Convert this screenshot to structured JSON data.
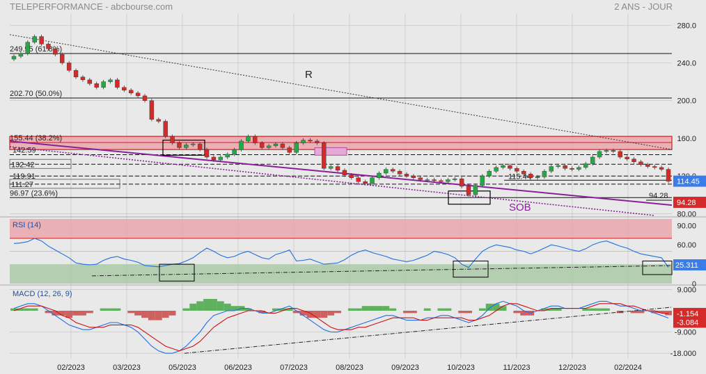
{
  "header": {
    "title": "TELEPERFORMANCE - abcbourse.com",
    "period": "2 ANS - JOUR"
  },
  "colors": {
    "background": "#e9e9e9",
    "grid": "#bdbdbd",
    "up_candle": "#27a745",
    "down_candle": "#d42a2a",
    "purple": "#8b1f9a",
    "rsi_line": "#1e6fe0",
    "macd_line": "#1e6fe0",
    "signal_line": "#cc1010",
    "hist_pos": "#5fb05f",
    "hist_neg": "#d06060",
    "price_tag_last": "#3b7de8",
    "price_tag_low": "#d42a2a"
  },
  "chart_data": [
    {
      "type": "candlestick",
      "panel": "price",
      "x_labels": [
        "02/2023",
        "03/2023",
        "05/2023",
        "06/2023",
        "07/2023",
        "08/2023",
        "09/2023",
        "10/2023",
        "11/2023",
        "12/2023",
        "02/2024"
      ],
      "y_ticks": [
        "280.0",
        "240.0",
        "200.0",
        "160.0",
        "120.0",
        "80.00"
      ],
      "ylim": [
        78,
        292
      ],
      "grid": true,
      "series_close": [
        [
          0,
          247
        ],
        [
          1,
          250
        ],
        [
          2,
          262
        ],
        [
          3,
          268
        ],
        [
          4,
          260
        ],
        [
          5,
          255
        ],
        [
          6,
          249
        ],
        [
          7,
          240
        ],
        [
          8,
          232
        ],
        [
          9,
          225
        ],
        [
          10,
          222
        ],
        [
          11,
          218
        ],
        [
          12,
          214
        ],
        [
          13,
          220
        ],
        [
          14,
          222
        ],
        [
          15,
          214
        ],
        [
          16,
          211
        ],
        [
          17,
          208
        ],
        [
          18,
          205
        ],
        [
          19,
          200
        ],
        [
          20,
          180
        ],
        [
          21,
          178
        ],
        [
          22,
          162
        ],
        [
          23,
          155
        ],
        [
          24,
          150
        ],
        [
          25,
          153
        ],
        [
          26,
          154
        ],
        [
          27,
          148
        ],
        [
          28,
          140
        ],
        [
          29,
          137
        ],
        [
          30,
          140
        ],
        [
          31,
          143
        ],
        [
          32,
          148
        ],
        [
          33,
          157
        ],
        [
          34,
          162
        ],
        [
          35,
          155
        ],
        [
          36,
          150
        ],
        [
          37,
          152
        ],
        [
          38,
          154
        ],
        [
          39,
          150
        ],
        [
          40,
          145
        ],
        [
          41,
          155
        ],
        [
          42,
          158
        ],
        [
          43,
          157
        ],
        [
          44,
          155
        ],
        [
          45,
          128
        ],
        [
          46,
          130
        ],
        [
          47,
          126
        ],
        [
          48,
          121
        ],
        [
          49,
          118
        ],
        [
          50,
          114
        ],
        [
          51,
          112
        ],
        [
          52,
          118
        ],
        [
          53,
          123
        ],
        [
          54,
          127
        ],
        [
          55,
          125
        ],
        [
          56,
          122
        ],
        [
          57,
          120
        ],
        [
          58,
          118
        ],
        [
          59,
          116
        ],
        [
          60,
          116
        ],
        [
          61,
          115
        ],
        [
          62,
          114
        ],
        [
          63,
          116
        ],
        [
          64,
          117
        ],
        [
          65,
          109
        ],
        [
          66,
          100
        ],
        [
          67,
          110
        ],
        [
          68,
          120
        ],
        [
          69,
          125
        ],
        [
          70,
          129
        ],
        [
          71,
          131
        ],
        [
          72,
          128
        ],
        [
          73,
          125
        ],
        [
          74,
          122
        ],
        [
          75,
          118
        ],
        [
          76,
          119
        ],
        [
          77,
          125
        ],
        [
          78,
          130
        ],
        [
          79,
          131
        ],
        [
          80,
          128
        ],
        [
          81,
          127
        ],
        [
          82,
          129
        ],
        [
          83,
          133
        ],
        [
          84,
          140
        ],
        [
          85,
          146
        ],
        [
          86,
          147
        ],
        [
          87,
          146
        ],
        [
          88,
          140
        ],
        [
          89,
          138
        ],
        [
          90,
          135
        ],
        [
          91,
          132
        ],
        [
          92,
          130
        ],
        [
          93,
          129
        ],
        [
          94,
          127
        ],
        [
          95,
          114.45
        ]
      ],
      "current_price": "114.45",
      "low_price_tag": "94.28",
      "fibonacci_levels": [
        {
          "label": "249.95  (61.8%)",
          "value": 249.95
        },
        {
          "label": "202.70  (50.0%)",
          "value": 202.7
        },
        {
          "label": "155.44  (38.2%)",
          "value": 155.44
        },
        {
          "label": "96.97  (23.6%)",
          "value": 96.97
        }
      ],
      "level_labels": [
        {
          "label": "142.59",
          "value": 142.59
        },
        {
          "label": "132.42",
          "value": 132.42
        },
        {
          "label": "119.91",
          "value": 119.91
        },
        {
          "label": "111.27",
          "value": 111.27
        },
        {
          "label": "115.44",
          "value": 115.44
        },
        {
          "label": "94.28",
          "value": 94.28
        }
      ],
      "annotations": [
        "R",
        "SOB"
      ]
    },
    {
      "type": "line",
      "panel": "rsi",
      "title": "RSI (14)",
      "y_ticks": [
        "90.00",
        "60.00",
        "30",
        "0"
      ],
      "ylim": [
        0,
        100
      ],
      "overbought": 70,
      "oversold": 30,
      "current_value": "25.311",
      "values": [
        62,
        63,
        65,
        70,
        66,
        58,
        52,
        46,
        40,
        32,
        30,
        29,
        30,
        36,
        40,
        42,
        38,
        36,
        33,
        28,
        27,
        26,
        28,
        30,
        31,
        35,
        40,
        48,
        55,
        50,
        44,
        40,
        42,
        47,
        50,
        45,
        40,
        38,
        45,
        48,
        52,
        35,
        36,
        38,
        34,
        30,
        31,
        32,
        37,
        44,
        49,
        52,
        48,
        45,
        42,
        38,
        36,
        34,
        36,
        40,
        44,
        50,
        48,
        45,
        40,
        30,
        25,
        38,
        50,
        56,
        60,
        58,
        56,
        52,
        50,
        46,
        50,
        55,
        60,
        58,
        55,
        52,
        50,
        54,
        60,
        64,
        66,
        62,
        58,
        55,
        50,
        46,
        44,
        42,
        40,
        25.3
      ]
    },
    {
      "type": "line",
      "panel": "macd",
      "title": "MACD (12, 26, 9)",
      "y_ticks": [
        "9.000",
        "-9.000",
        "-18.000"
      ],
      "ylim": [
        -20,
        10
      ],
      "current_signal": "-1.154",
      "current_macd": "-3.084",
      "series": [
        {
          "name": "MACD",
          "values": [
            1,
            2,
            3,
            3,
            2,
            0,
            -2,
            -4,
            -6,
            -7,
            -8,
            -8,
            -7,
            -6,
            -5,
            -5,
            -6,
            -7,
            -9,
            -12,
            -15,
            -17,
            -18,
            -18,
            -17,
            -15,
            -12,
            -9,
            -5,
            -2,
            -1,
            0,
            0,
            1,
            1,
            0,
            -1,
            -1,
            0,
            1,
            2,
            0,
            -2,
            -4,
            -6,
            -8,
            -9,
            -9,
            -8,
            -7,
            -6,
            -5,
            -4,
            -3,
            -2,
            -2,
            -3,
            -4,
            -4,
            -4,
            -3,
            -3,
            -2,
            -2,
            -3,
            -4,
            -5,
            -4,
            -2,
            1,
            3,
            4,
            3,
            2,
            0,
            -1,
            0,
            1,
            2,
            2,
            1,
            1,
            1,
            2,
            3,
            4,
            4,
            3,
            2,
            2,
            1,
            0,
            0,
            -1,
            -2,
            -3.1
          ]
        },
        {
          "name": "Signal",
          "values": [
            0,
            1,
            2,
            2,
            2,
            1,
            0,
            -2,
            -3,
            -5,
            -6,
            -7,
            -7,
            -7,
            -6,
            -6,
            -6,
            -6,
            -7,
            -9,
            -11,
            -13,
            -15,
            -16,
            -17,
            -16,
            -15,
            -13,
            -10,
            -7,
            -5,
            -3,
            -2,
            -1,
            0,
            0,
            0,
            -1,
            -1,
            0,
            1,
            1,
            0,
            -1,
            -3,
            -5,
            -7,
            -8,
            -8,
            -8,
            -7,
            -7,
            -6,
            -5,
            -4,
            -3,
            -3,
            -3,
            -3,
            -4,
            -4,
            -3,
            -3,
            -3,
            -3,
            -3,
            -4,
            -4,
            -3,
            -2,
            0,
            2,
            3,
            3,
            2,
            1,
            0,
            0,
            1,
            1,
            1,
            1,
            1,
            1,
            2,
            3,
            3,
            3,
            3,
            2,
            2,
            1,
            0,
            0,
            -1,
            -1.2
          ]
        }
      ]
    }
  ]
}
